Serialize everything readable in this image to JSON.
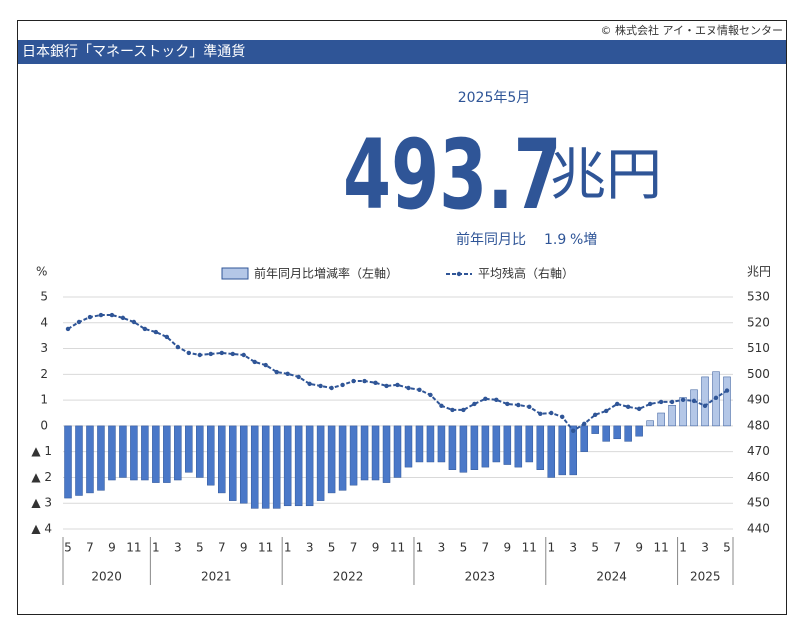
{
  "copyright": "© 株式会社 アイ・エヌ情報センター",
  "header": {
    "title": "日本銀行「マネーストック」準通貨"
  },
  "headline": {
    "period": "2025年5月",
    "value": "493.7",
    "unit": "兆円",
    "change_prefix": "前年同月比",
    "change_value": "1.9",
    "change_suffix": "%増"
  },
  "chart_data": {
    "type": "bar-line",
    "y_label": "%",
    "y2_label": "兆円",
    "categories": [
      "5",
      null,
      "7",
      null,
      "9",
      null,
      "11",
      null,
      "1",
      null,
      "3",
      null,
      "5",
      null,
      "7",
      null,
      "9",
      null,
      "11",
      null,
      "1",
      null,
      "3",
      null,
      "5",
      null,
      "7",
      null,
      "9",
      null,
      "11",
      null,
      "1",
      null,
      "3",
      null,
      "5",
      null,
      "7",
      null,
      "9",
      null,
      "11",
      null,
      "1",
      null,
      "3",
      null,
      "5",
      null,
      "7",
      null,
      "9",
      null,
      "11",
      null,
      "1",
      null,
      "3",
      null,
      "5"
    ],
    "year_groups": [
      "2020",
      "2021",
      "2022",
      "2023",
      "2024",
      "2025"
    ],
    "series": [
      {
        "name": "前年同月比増減率（左軸）",
        "kind": "bar",
        "color": "#b4c7e7",
        "negative_color": "#4a78c8",
        "edge_color": "#2f5597",
        "values": [
          -2.8,
          -2.7,
          -2.6,
          -2.5,
          -2.1,
          -2.0,
          -2.1,
          -2.1,
          -2.2,
          -2.2,
          -2.1,
          -1.8,
          -2.0,
          -2.3,
          -2.6,
          -2.9,
          -3.0,
          -3.2,
          -3.2,
          -3.2,
          -3.1,
          -3.1,
          -3.1,
          -2.9,
          -2.6,
          -2.5,
          -2.3,
          -2.1,
          -2.1,
          -2.2,
          -2.0,
          -1.6,
          -1.4,
          -1.4,
          -1.4,
          -1.7,
          -1.8,
          -1.7,
          -1.6,
          -1.4,
          -1.5,
          -1.6,
          -1.4,
          -1.7,
          -2.0,
          -1.9,
          -1.9,
          -1.0,
          -0.3,
          -0.6,
          -0.5,
          -0.6,
          -0.4,
          0.2,
          0.5,
          0.8,
          1.1,
          1.4,
          1.9,
          2.1,
          1.9
        ]
      },
      {
        "name": "平均残高（右軸）",
        "kind": "line",
        "axis": "y2",
        "color": "#2f5597",
        "values": [
          517.6,
          520.3,
          522.2,
          523.0,
          523.0,
          521.9,
          520.3,
          517.6,
          516.4,
          514.5,
          510.6,
          508.3,
          507.5,
          507.9,
          508.3,
          507.9,
          507.5,
          504.8,
          503.6,
          500.9,
          500.2,
          499.0,
          496.3,
          495.5,
          494.7,
          495.9,
          497.4,
          497.4,
          496.7,
          495.5,
          495.9,
          494.7,
          494.0,
          492.0,
          487.8,
          486.2,
          486.2,
          488.5,
          490.5,
          490.1,
          488.5,
          488.1,
          487.4,
          484.7,
          485.0,
          483.5,
          478.1,
          480.8,
          484.3,
          485.8,
          488.5,
          487.4,
          486.6,
          488.5,
          489.3,
          489.3,
          490.1,
          489.7,
          487.8,
          490.9,
          493.7
        ]
      }
    ],
    "ylim": [
      -4,
      5
    ],
    "yticks": [
      {
        "value": -4,
        "label": "▲ 4"
      },
      {
        "value": -3,
        "label": "▲ 3"
      },
      {
        "value": -2,
        "label": "▲ 2"
      },
      {
        "value": -1,
        "label": "▲ 1"
      },
      0,
      1,
      2,
      3,
      4,
      5
    ],
    "y2lim": [
      440,
      530
    ],
    "y2ticks": [
      440,
      450,
      460,
      470,
      480,
      490,
      500,
      510,
      520,
      530
    ],
    "grid": true,
    "legend": "top"
  }
}
